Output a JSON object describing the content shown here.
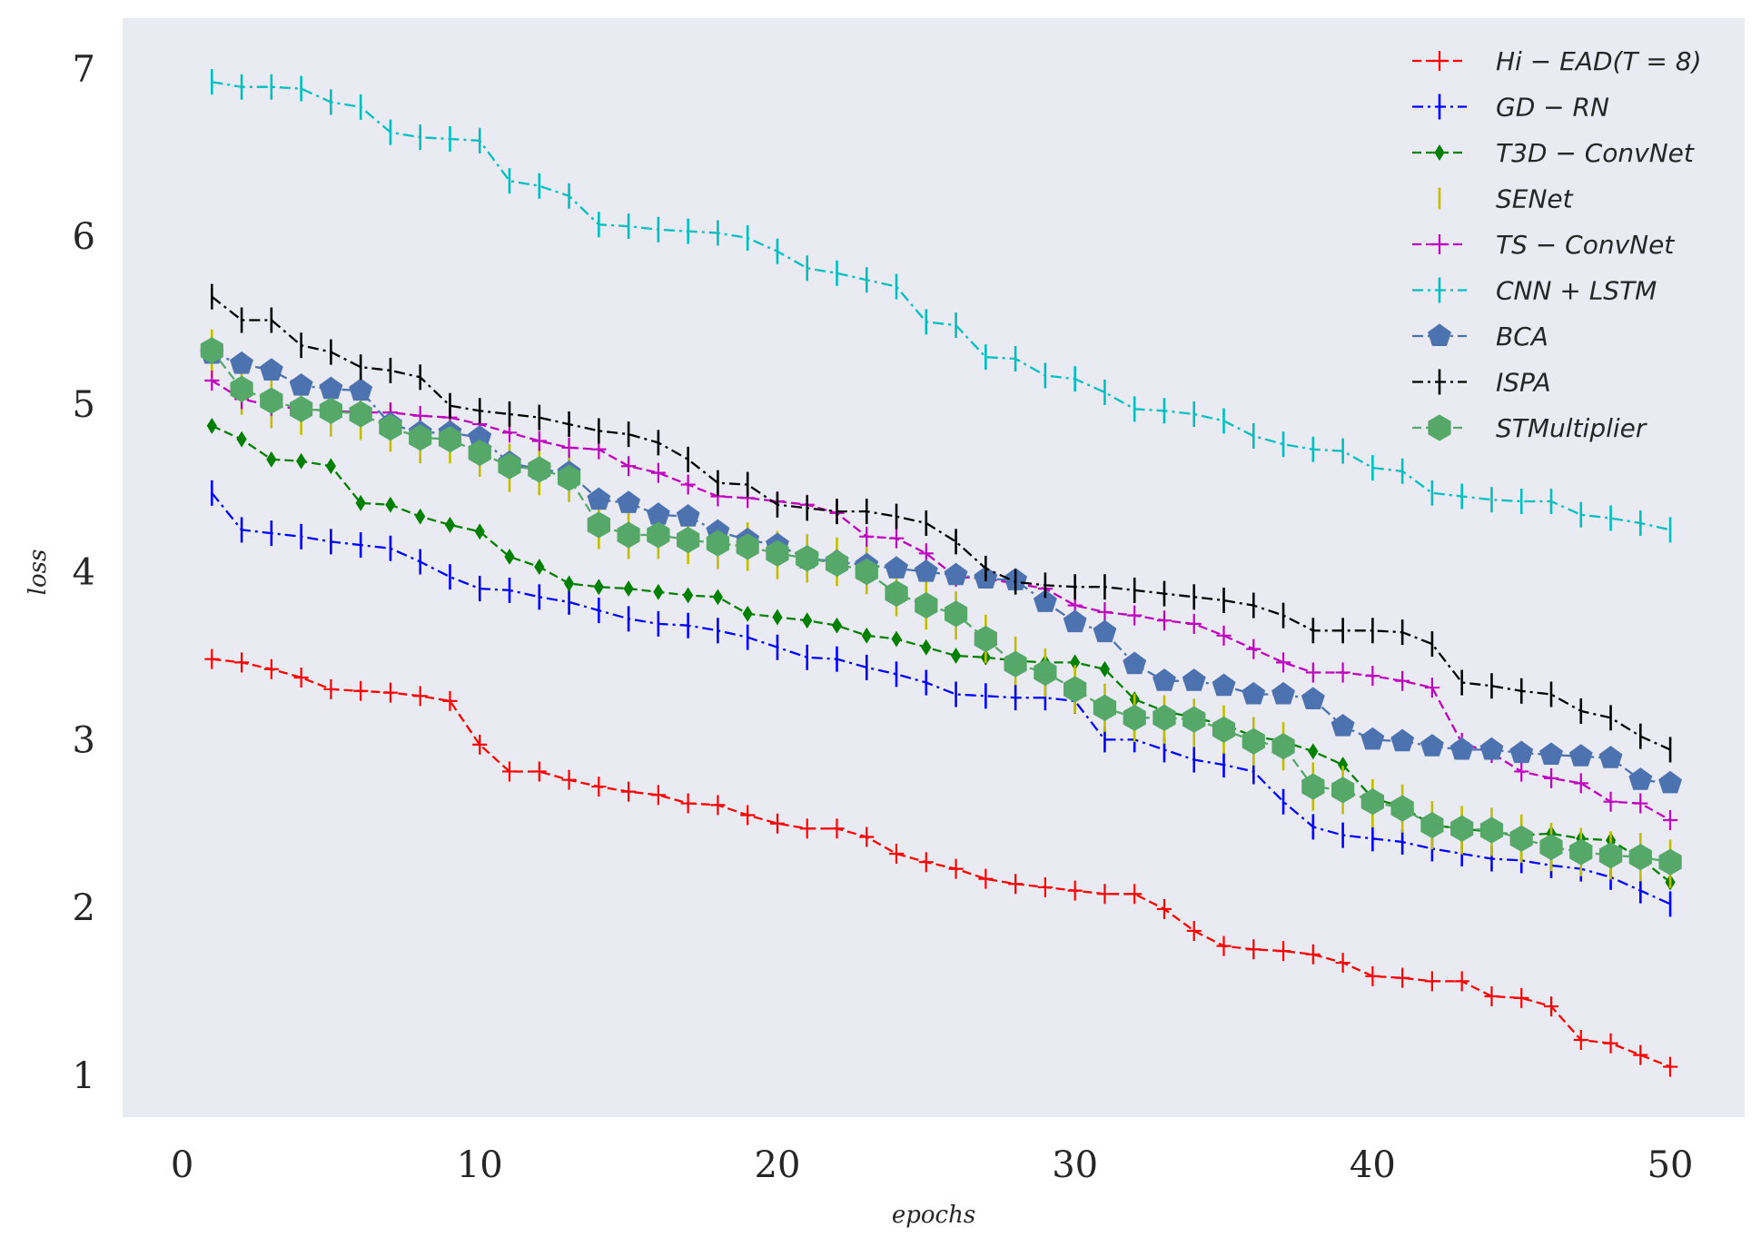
{
  "chart_data": {
    "type": "line",
    "title": "",
    "xlabel": "epochs",
    "ylabel": "loss",
    "xlim": [
      -2,
      52.5
    ],
    "ylim": [
      0.75,
      7.3
    ],
    "xticks": [
      "0",
      "10",
      "20",
      "30",
      "40",
      "50"
    ],
    "yticks": [
      "1",
      "2",
      "3",
      "4",
      "5",
      "6",
      "7"
    ],
    "grid": false,
    "legend_position": "top-right",
    "background": "#eaeaf2",
    "x": [
      1,
      2,
      3,
      4,
      5,
      6,
      7,
      8,
      9,
      10,
      11,
      12,
      13,
      14,
      15,
      16,
      17,
      18,
      19,
      20,
      21,
      22,
      23,
      24,
      25,
      26,
      27,
      28,
      29,
      30,
      31,
      32,
      33,
      34,
      35,
      36,
      37,
      38,
      39,
      40,
      41,
      42,
      43,
      44,
      45,
      46,
      47,
      48,
      49,
      50
    ],
    "series": [
      {
        "name": "Hi − EAD(T = 8)",
        "color": "#ff0000",
        "linestyle": "dashed",
        "marker": "plus",
        "values": [
          3.48,
          3.46,
          3.42,
          3.37,
          3.3,
          3.29,
          3.28,
          3.26,
          3.23,
          2.97,
          2.81,
          2.81,
          2.76,
          2.72,
          2.69,
          2.67,
          2.62,
          2.61,
          2.55,
          2.5,
          2.47,
          2.47,
          2.42,
          2.32,
          2.27,
          2.23,
          2.17,
          2.14,
          2.12,
          2.1,
          2.08,
          2.08,
          1.99,
          1.86,
          1.77,
          1.75,
          1.74,
          1.72,
          1.67,
          1.59,
          1.58,
          1.56,
          1.56,
          1.47,
          1.46,
          1.41,
          1.21,
          1.19,
          1.12,
          1.05
        ]
      },
      {
        "name": "GD − RN",
        "color": "#0000ff",
        "linestyle": "dashdot",
        "marker": "vline",
        "values": [
          4.47,
          4.25,
          4.23,
          4.21,
          4.18,
          4.16,
          4.14,
          4.06,
          3.97,
          3.9,
          3.89,
          3.85,
          3.82,
          3.77,
          3.72,
          3.69,
          3.68,
          3.65,
          3.61,
          3.55,
          3.49,
          3.48,
          3.43,
          3.39,
          3.34,
          3.27,
          3.26,
          3.25,
          3.25,
          3.23,
          3.0,
          3.0,
          2.94,
          2.88,
          2.85,
          2.81,
          2.63,
          2.48,
          2.43,
          2.41,
          2.39,
          2.35,
          2.32,
          2.29,
          2.28,
          2.25,
          2.23,
          2.18,
          2.1,
          2.02
        ]
      },
      {
        "name": "T3D − ConvNet",
        "color": "#008000",
        "linestyle": "dashed",
        "marker": "diamond",
        "values": [
          4.87,
          4.79,
          4.67,
          4.66,
          4.63,
          4.41,
          4.4,
          4.33,
          4.28,
          4.24,
          4.09,
          4.03,
          3.93,
          3.91,
          3.9,
          3.88,
          3.86,
          3.85,
          3.75,
          3.73,
          3.71,
          3.68,
          3.62,
          3.6,
          3.55,
          3.5,
          3.49,
          3.47,
          3.46,
          3.46,
          3.42,
          3.24,
          3.17,
          3.13,
          3.09,
          3.02,
          2.99,
          2.93,
          2.85,
          2.65,
          2.6,
          2.49,
          2.47,
          2.45,
          2.43,
          2.44,
          2.41,
          2.4,
          2.29,
          2.15
        ]
      },
      {
        "name": "SENet",
        "color": "#bfbf00",
        "linestyle": "none",
        "marker": "vline",
        "values": [
          5.3,
          5.08,
          5.0,
          4.96,
          4.95,
          4.93,
          4.86,
          4.79,
          4.79,
          4.71,
          4.62,
          4.6,
          4.56,
          4.28,
          4.22,
          4.22,
          4.19,
          4.16,
          4.15,
          4.1,
          4.08,
          4.06,
          4.01,
          3.88,
          3.8,
          3.74,
          3.6,
          3.47,
          3.4,
          3.3,
          3.19,
          3.13,
          3.12,
          3.1,
          3.06,
          2.99,
          2.96,
          2.72,
          2.7,
          2.62,
          2.59,
          2.49,
          2.46,
          2.45,
          2.41,
          2.36,
          2.33,
          2.31,
          2.3,
          2.26
        ]
      },
      {
        "name": "TS − ConvNet",
        "color": "#bf00bf",
        "linestyle": "dashed",
        "marker": "plus",
        "values": [
          5.14,
          5.03,
          4.99,
          4.97,
          4.96,
          4.95,
          4.95,
          4.93,
          4.92,
          4.88,
          4.83,
          4.78,
          4.74,
          4.73,
          4.63,
          4.59,
          4.52,
          4.45,
          4.44,
          4.42,
          4.4,
          4.35,
          4.21,
          4.2,
          4.11,
          3.97,
          3.96,
          3.93,
          3.9,
          3.8,
          3.76,
          3.74,
          3.71,
          3.69,
          3.62,
          3.54,
          3.46,
          3.4,
          3.4,
          3.38,
          3.35,
          3.31,
          2.98,
          2.92,
          2.81,
          2.77,
          2.74,
          2.63,
          2.62,
          2.52
        ]
      },
      {
        "name": "CNN + LSTM",
        "color": "#00bfbf",
        "linestyle": "dashdot",
        "marker": "vline",
        "values": [
          6.92,
          6.89,
          6.89,
          6.88,
          6.8,
          6.77,
          6.62,
          6.59,
          6.58,
          6.57,
          6.33,
          6.3,
          6.24,
          6.07,
          6.06,
          6.04,
          6.03,
          6.02,
          5.99,
          5.91,
          5.81,
          5.78,
          5.74,
          5.7,
          5.49,
          5.47,
          5.28,
          5.27,
          5.17,
          5.15,
          5.07,
          4.97,
          4.96,
          4.94,
          4.9,
          4.81,
          4.76,
          4.73,
          4.72,
          4.62,
          4.6,
          4.47,
          4.45,
          4.43,
          4.42,
          4.42,
          4.34,
          4.32,
          4.29,
          4.25
        ]
      },
      {
        "name": "BCA",
        "color": "#4c72b0",
        "linestyle": "dashdot",
        "marker": "pentagon",
        "values": [
          5.3,
          5.24,
          5.2,
          5.11,
          5.09,
          5.08,
          4.88,
          4.83,
          4.83,
          4.8,
          4.65,
          4.61,
          4.59,
          4.43,
          4.41,
          4.34,
          4.33,
          4.24,
          4.19,
          4.16,
          4.08,
          4.06,
          4.04,
          4.02,
          4.0,
          3.98,
          3.96,
          3.95,
          3.82,
          3.7,
          3.64,
          3.45,
          3.35,
          3.35,
          3.32,
          3.27,
          3.27,
          3.24,
          3.08,
          3.0,
          2.99,
          2.96,
          2.94,
          2.94,
          2.92,
          2.91,
          2.9,
          2.89,
          2.76,
          2.74
        ]
      },
      {
        "name": "ISPA",
        "color": "#000000",
        "linestyle": "dashdot",
        "marker": "vline",
        "values": [
          5.64,
          5.5,
          5.5,
          5.35,
          5.31,
          5.22,
          5.2,
          5.16,
          4.99,
          4.96,
          4.94,
          4.92,
          4.88,
          4.84,
          4.82,
          4.77,
          4.67,
          4.53,
          4.52,
          4.4,
          4.38,
          4.36,
          4.36,
          4.33,
          4.29,
          4.18,
          4.02,
          3.94,
          3.92,
          3.91,
          3.91,
          3.89,
          3.87,
          3.85,
          3.83,
          3.8,
          3.74,
          3.65,
          3.65,
          3.65,
          3.64,
          3.57,
          3.34,
          3.32,
          3.29,
          3.27,
          3.17,
          3.13,
          3.02,
          2.94
        ]
      },
      {
        "name": "STMultiplier",
        "color": "#55a868",
        "linestyle": "dashed",
        "marker": "hexagon",
        "values": [
          5.32,
          5.09,
          5.02,
          4.97,
          4.96,
          4.94,
          4.86,
          4.8,
          4.79,
          4.71,
          4.63,
          4.61,
          4.56,
          4.28,
          4.22,
          4.22,
          4.19,
          4.17,
          4.15,
          4.11,
          4.08,
          4.05,
          4.0,
          3.87,
          3.8,
          3.75,
          3.6,
          3.45,
          3.4,
          3.3,
          3.19,
          3.13,
          3.13,
          3.12,
          3.06,
          2.99,
          2.96,
          2.72,
          2.7,
          2.63,
          2.59,
          2.49,
          2.47,
          2.46,
          2.41,
          2.36,
          2.33,
          2.31,
          2.3,
          2.27
        ]
      }
    ]
  }
}
